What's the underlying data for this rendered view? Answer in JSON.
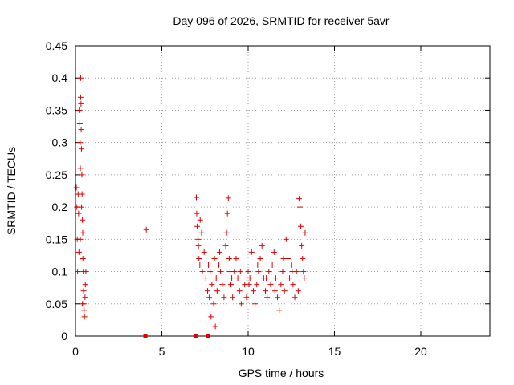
{
  "chart_data": {
    "type": "scatter",
    "title": "Day 096 of 2026, SRMTID for receiver 5avr",
    "xlabel": "GPS time / hours",
    "ylabel": "SRMTID / TECUs",
    "xlim": [
      0,
      24
    ],
    "ylim": [
      0,
      0.45
    ],
    "xticks": [
      "0",
      "5",
      "10",
      "15",
      "20"
    ],
    "yticks": [
      "0",
      "0.05",
      "0.1",
      "0.15",
      "0.2",
      "0.25",
      "0.3",
      "0.35",
      "0.4",
      "0.45"
    ],
    "grid": true,
    "marker": "plus",
    "color": "#e00000",
    "series": [
      {
        "points": [
          [
            0.05,
            0.23
          ],
          [
            0.08,
            0.2
          ],
          [
            0.1,
            0.15
          ],
          [
            0.12,
            0.1
          ],
          [
            0.15,
            0.22
          ],
          [
            0.18,
            0.19
          ],
          [
            0.2,
            0.13
          ],
          [
            0.22,
            0.35
          ],
          [
            0.25,
            0.33
          ],
          [
            0.27,
            0.3
          ],
          [
            0.28,
            0.26
          ],
          [
            0.3,
            0.4
          ],
          [
            0.3,
            0.37
          ],
          [
            0.32,
            0.36
          ],
          [
            0.33,
            0.32
          ],
          [
            0.35,
            0.29
          ],
          [
            0.37,
            0.25
          ],
          [
            0.38,
            0.22
          ],
          [
            0.4,
            0.18
          ],
          [
            0.42,
            0.16
          ],
          [
            0.43,
            0.12
          ],
          [
            0.45,
            0.1
          ],
          [
            0.47,
            0.07
          ],
          [
            0.48,
            0.05
          ],
          [
            0.5,
            0.04
          ],
          [
            0.52,
            0.03
          ],
          [
            0.55,
            0.06
          ],
          [
            0.57,
            0.08
          ],
          [
            0.6,
            0.1
          ],
          [
            0.35,
            0.2
          ],
          [
            0.28,
            0.15
          ],
          [
            0.4,
            0.05
          ],
          [
            4.1,
            0.165
          ],
          [
            7.0,
            0.215
          ],
          [
            7.02,
            0.19
          ],
          [
            7.05,
            0.17
          ],
          [
            7.1,
            0.15
          ],
          [
            7.12,
            0.14
          ],
          [
            7.15,
            0.12
          ],
          [
            7.2,
            0.11
          ],
          [
            7.22,
            0.18
          ],
          [
            7.3,
            0.16
          ],
          [
            7.35,
            0.1
          ],
          [
            7.45,
            0.13
          ],
          [
            7.55,
            0.09
          ],
          [
            7.65,
            0.07
          ],
          [
            7.7,
            0.11
          ],
          [
            7.75,
            0.06
          ],
          [
            7.8,
            0.1
          ],
          [
            7.85,
            0.03
          ],
          [
            7.9,
            0.08
          ],
          [
            8.0,
            0.05
          ],
          [
            8.05,
            0.12
          ],
          [
            8.1,
            0.015
          ],
          [
            8.15,
            0.09
          ],
          [
            8.2,
            0.07
          ],
          [
            8.3,
            0.11
          ],
          [
            8.35,
            0.13
          ],
          [
            8.4,
            0.1
          ],
          [
            8.5,
            0.08
          ],
          [
            8.6,
            0.06
          ],
          [
            8.7,
            0.14
          ],
          [
            8.75,
            0.16
          ],
          [
            8.8,
            0.19
          ],
          [
            8.85,
            0.214
          ],
          [
            8.9,
            0.12
          ],
          [
            8.95,
            0.1
          ],
          [
            9.0,
            0.08
          ],
          [
            9.1,
            0.06
          ],
          [
            9.2,
            0.1
          ],
          [
            9.3,
            0.12
          ],
          [
            9.4,
            0.09
          ],
          [
            9.5,
            0.07
          ],
          [
            9.6,
            0.05
          ],
          [
            9.7,
            0.11
          ],
          [
            9.8,
            0.08
          ],
          [
            9.9,
            0.06
          ],
          [
            10.0,
            0.1
          ],
          [
            10.1,
            0.09
          ],
          [
            10.2,
            0.13
          ],
          [
            10.3,
            0.07
          ],
          [
            10.4,
            0.05
          ],
          [
            10.5,
            0.08
          ],
          [
            10.6,
            0.1
          ],
          [
            10.7,
            0.12
          ],
          [
            10.8,
            0.14
          ],
          [
            10.9,
            0.09
          ],
          [
            11.0,
            0.07
          ],
          [
            11.1,
            0.06
          ],
          [
            11.2,
            0.1
          ],
          [
            11.3,
            0.08
          ],
          [
            11.4,
            0.11
          ],
          [
            11.5,
            0.13
          ],
          [
            11.6,
            0.09
          ],
          [
            11.7,
            0.06
          ],
          [
            11.8,
            0.04
          ],
          [
            11.9,
            0.08
          ],
          [
            12.0,
            0.1
          ],
          [
            12.1,
            0.07
          ],
          [
            12.2,
            0.15
          ],
          [
            12.3,
            0.12
          ],
          [
            12.4,
            0.09
          ],
          [
            12.5,
            0.11
          ],
          [
            12.6,
            0.08
          ],
          [
            12.7,
            0.06
          ],
          [
            12.8,
            0.1
          ],
          [
            12.9,
            0.07
          ],
          [
            12.95,
            0.213
          ],
          [
            13.0,
            0.2
          ],
          [
            13.05,
            0.17
          ],
          [
            13.1,
            0.14
          ],
          [
            13.15,
            0.12
          ],
          [
            13.2,
            0.1
          ],
          [
            13.25,
            0.09
          ],
          [
            13.3,
            0.16
          ],
          [
            9.05,
            0.09
          ],
          [
            9.55,
            0.1
          ],
          [
            10.05,
            0.08
          ],
          [
            10.55,
            0.11
          ],
          [
            11.05,
            0.09
          ],
          [
            11.55,
            0.07
          ],
          [
            12.05,
            0.12
          ],
          [
            12.55,
            0.1
          ]
        ]
      }
    ],
    "zero_markers": [
      4.05,
      6.95,
      7.65
    ]
  }
}
